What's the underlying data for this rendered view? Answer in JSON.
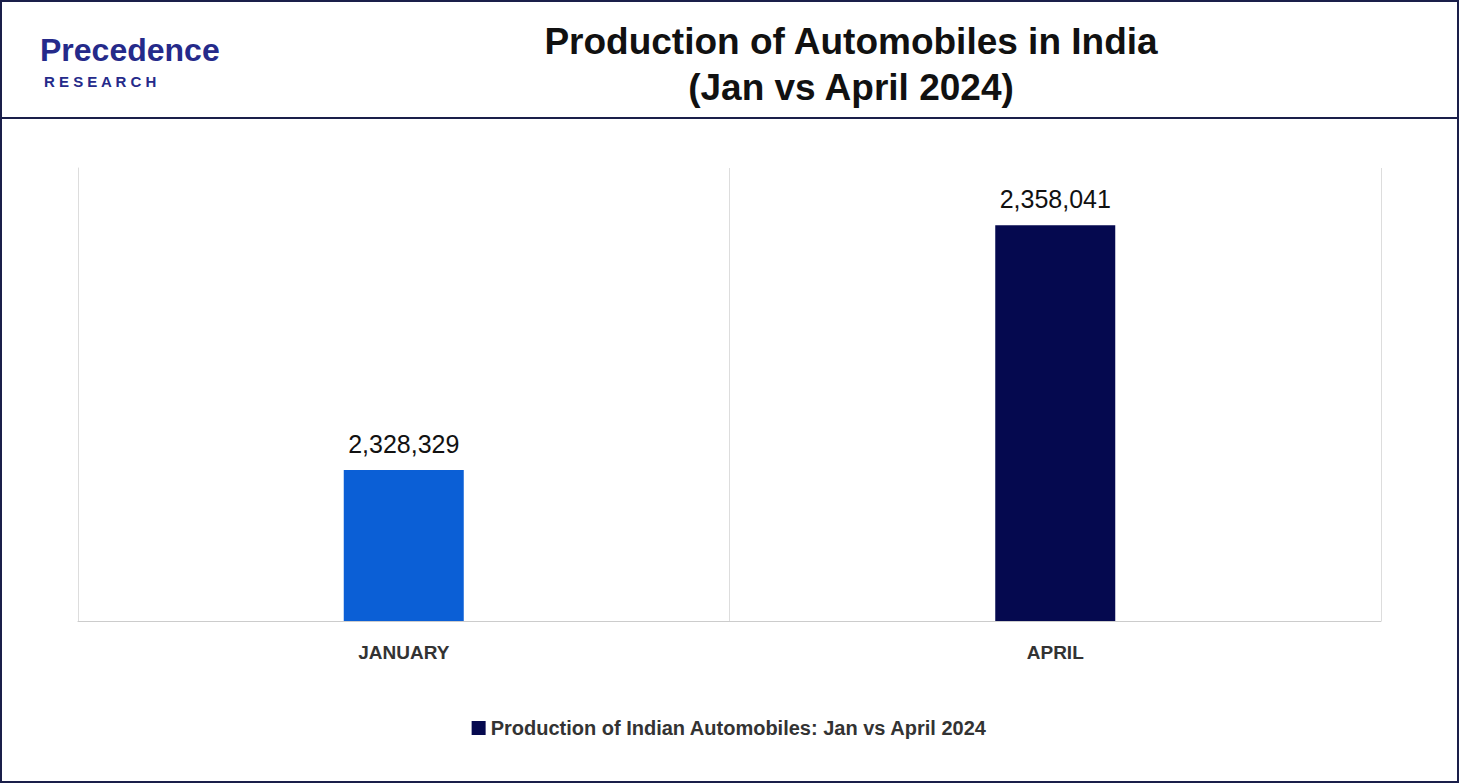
{
  "chart_data": {
    "type": "bar",
    "title": "Production of Automobiles in India\n(Jan vs April 2024)",
    "annotations": [
      "Precedence",
      "RESEARCH"
    ],
    "categories": [
      "JANUARY",
      "APRIL"
    ],
    "series": [
      {
        "name": "Production of Indian Automobiles: Jan vs April 2024",
        "values": [
          2328329,
          2358041
        ],
        "value_labels": [
          "2,328,329",
          "2,358,041"
        ],
        "colors": [
          "#0b5fd6",
          "#05094f"
        ]
      }
    ],
    "ylim": [
      2310000,
      2365000
    ],
    "data_labels": true,
    "tick_labels": "x",
    "grid": true,
    "legend": "bottom"
  }
}
